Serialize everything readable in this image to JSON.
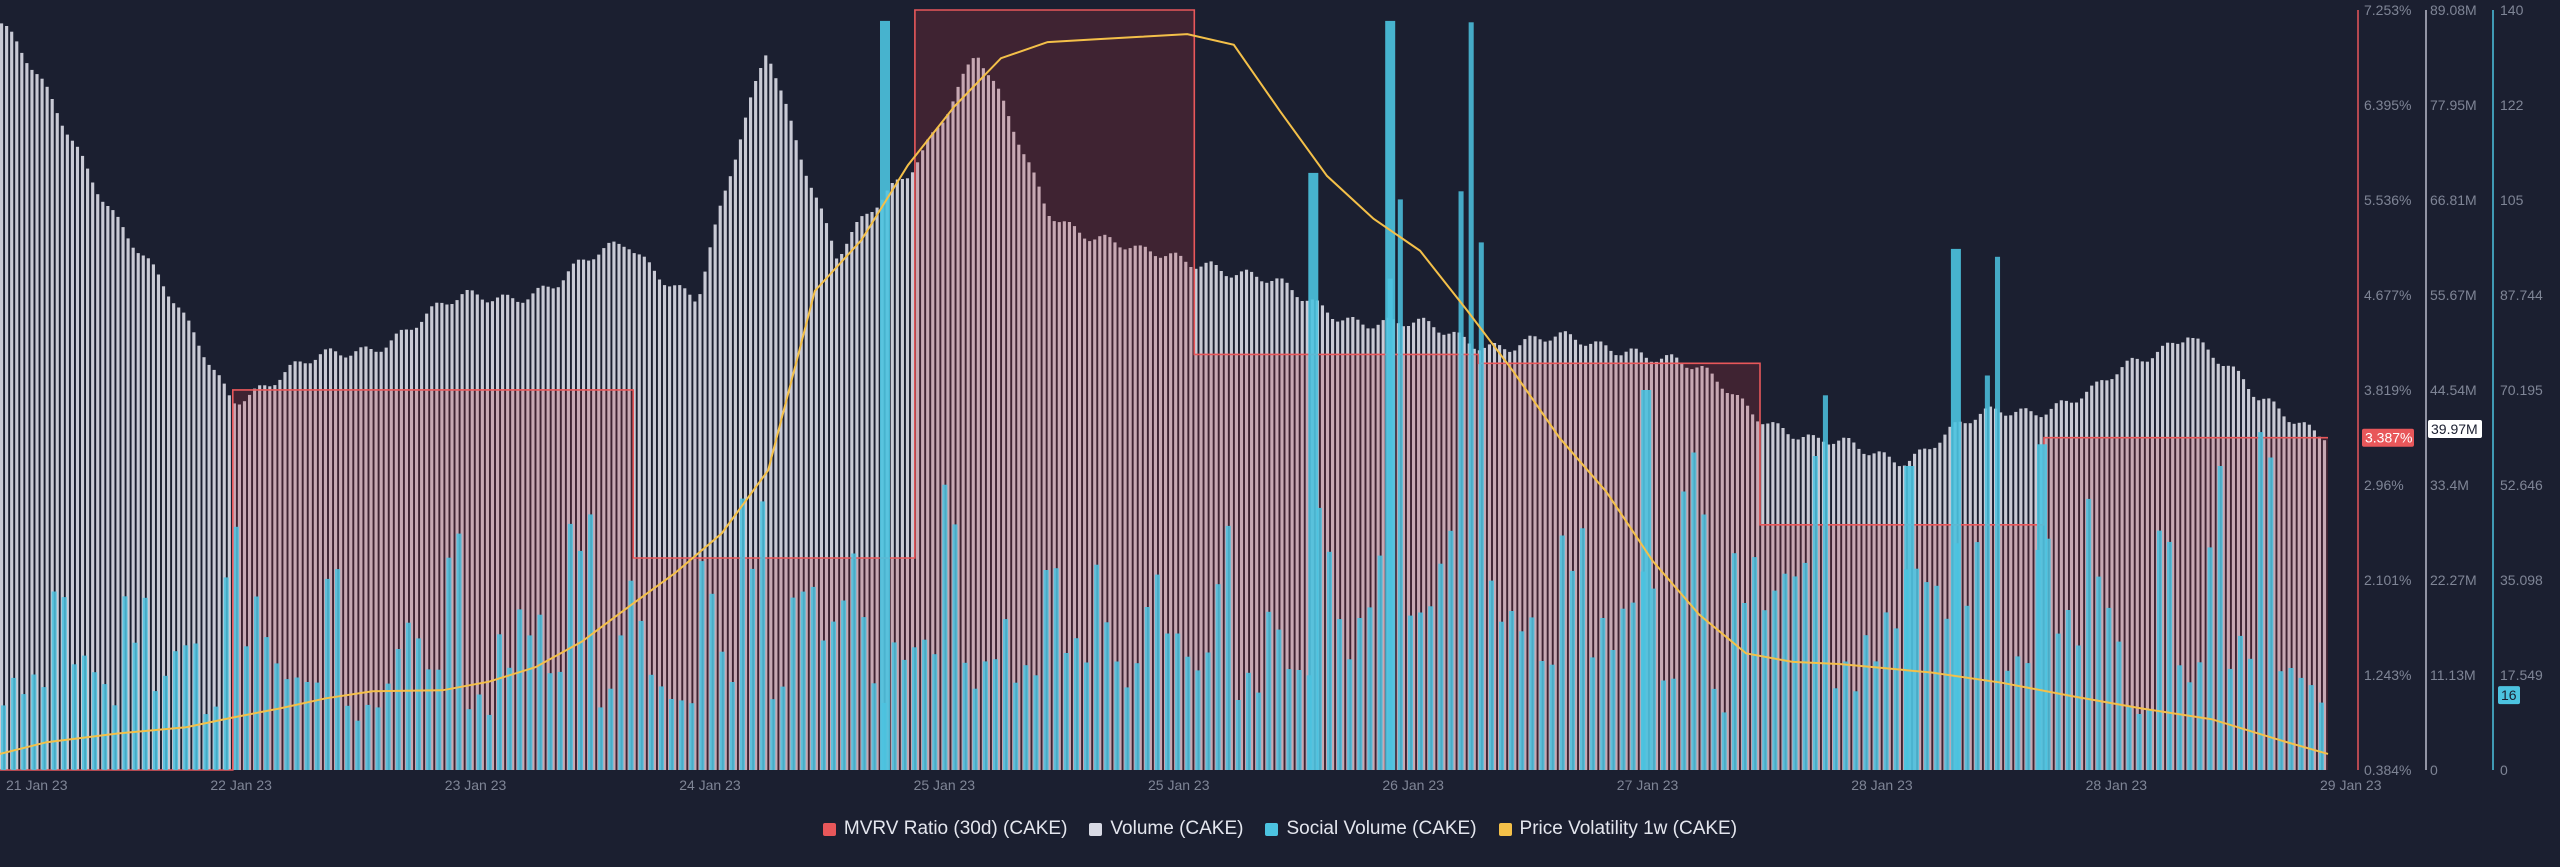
{
  "chart_data": {
    "type": "bar",
    "title": "",
    "x_tick_labels": [
      "21 Jan 23",
      "22 Jan 23",
      "23 Jan 23",
      "24 Jan 23",
      "25 Jan 23",
      "25 Jan 23",
      "26 Jan 23",
      "27 Jan 23",
      "28 Jan 23",
      "28 Jan 23",
      "29 Jan 23"
    ],
    "axes": {
      "mvrv": {
        "ticks": [
          "7.253%",
          "6.395%",
          "5.536%",
          "4.677%",
          "3.819%",
          "2.96%",
          "2.101%",
          "1.243%",
          "0.384%"
        ],
        "range": [
          0.384,
          7.253
        ],
        "unit": "%",
        "color": "#e8575a"
      },
      "volume": {
        "ticks": [
          "89.08M",
          "77.95M",
          "66.81M",
          "55.67M",
          "44.54M",
          "33.4M",
          "22.27M",
          "11.13M",
          "0"
        ],
        "range": [
          0,
          89.08
        ],
        "unit": "M",
        "color": "#b9bccb"
      },
      "social": {
        "ticks": [
          "140",
          "122",
          "105",
          "87.744",
          "70.195",
          "52.646",
          "35.098",
          "17.549",
          "0"
        ],
        "range": [
          0,
          140
        ],
        "color": "#4cc3e0"
      }
    },
    "current_values": {
      "mvrv": "3.387%",
      "volume": "39.97M",
      "social": "16"
    },
    "series": [
      {
        "name": "MVRV Ratio (30d) (CAKE)",
        "color": "#e8575a",
        "kind": "step",
        "x": [
          0,
          0.1,
          0.1,
          0.1,
          0.272,
          0.272,
          0.393,
          0.393,
          0.513,
          0.513,
          0.635,
          0.635,
          0.756,
          0.756,
          0.878,
          0.878,
          0.964,
          0.964,
          1.0
        ],
        "values": [
          0.384,
          0.384,
          3.819,
          3.819,
          3.819,
          2.3,
          2.3,
          7.253,
          7.253,
          4.14,
          4.14,
          4.06,
          4.06,
          2.6,
          2.6,
          3.387,
          3.387,
          3.387,
          3.387
        ]
      },
      {
        "name": "Volume (CAKE)",
        "color": "#d8d9e4",
        "kind": "bar",
        "x": [
          0,
          0.04,
          0.08,
          0.1,
          0.16,
          0.2,
          0.24,
          0.27,
          0.3,
          0.33,
          0.36,
          0.39,
          0.42,
          0.45,
          0.49,
          0.52,
          0.56,
          0.6,
          0.65,
          0.7,
          0.74,
          0.78,
          0.82,
          0.86,
          0.9,
          0.94,
          0.97,
          1.0
        ],
        "values": [
          88,
          70,
          52,
          44,
          50,
          55,
          57,
          62,
          55,
          85,
          60,
          70,
          84,
          66,
          60,
          60,
          55,
          52,
          50,
          50,
          45,
          38,
          37,
          42,
          44,
          52,
          43,
          40
        ]
      },
      {
        "name": "Social Volume (CAKE)",
        "color": "#4cc3e0",
        "kind": "bar",
        "values": [
          17,
          18,
          35,
          22,
          16,
          32,
          18,
          25,
          12,
          45,
          32,
          20,
          18,
          37,
          12,
          16,
          28,
          20,
          45,
          14,
          25,
          30,
          20,
          48,
          15,
          35,
          18,
          14,
          40,
          22,
          50,
          16,
          36,
          28,
          40,
          16,
          24,
          24,
          55,
          20,
          28,
          20,
          40,
          25,
          38,
          20,
          36,
          28,
          22,
          45,
          18,
          30,
          20,
          50,
          28,
          40,
          110,
          32,
          45,
          138,
          35,
          30,
          22,
          45,
          28,
          30,
          38,
          18,
          60,
          15,
          40,
          35,
          40,
          70,
          20,
          25,
          30,
          40,
          35,
          42,
          96,
          22,
          45,
          30,
          50,
          30,
          12,
          48,
          20,
          56,
          25,
          65,
          20,
          16
        ]
      },
      {
        "name": "Price Volatility 1w (CAKE)",
        "color": "#f4c049",
        "kind": "line",
        "x": [
          0,
          0.02,
          0.05,
          0.08,
          0.1,
          0.12,
          0.14,
          0.16,
          0.19,
          0.21,
          0.23,
          0.25,
          0.27,
          0.29,
          0.31,
          0.33,
          0.35,
          0.37,
          0.39,
          0.41,
          0.43,
          0.45,
          0.47,
          0.49,
          0.51,
          0.53,
          0.55,
          0.57,
          0.59,
          0.61,
          0.63,
          0.65,
          0.67,
          0.69,
          0.71,
          0.73,
          0.75,
          0.77,
          0.79,
          0.81,
          0.83,
          0.86,
          0.89,
          0.92,
          0.95,
          0.98,
          1.0
        ],
        "values": [
          0.3,
          0.52,
          0.68,
          0.8,
          0.98,
          1.15,
          1.34,
          1.47,
          1.49,
          1.65,
          1.92,
          2.4,
          3.05,
          3.68,
          4.42,
          5.6,
          8.95,
          9.9,
          11.3,
          12.4,
          13.3,
          13.6,
          13.65,
          13.7,
          13.75,
          13.55,
          12.3,
          11.1,
          10.3,
          9.7,
          8.6,
          7.45,
          6.2,
          5.2,
          3.9,
          2.9,
          2.18,
          2.02,
          1.98,
          1.9,
          1.82,
          1.63,
          1.38,
          1.15,
          0.95,
          0.55,
          0.3
        ]
      }
    ]
  },
  "legend": [
    {
      "label": "MVRV Ratio (30d) (CAKE)",
      "color": "#e8575a"
    },
    {
      "label": "Volume (CAKE)",
      "color": "#d8d9e4"
    },
    {
      "label": "Social Volume (CAKE)",
      "color": "#4cc3e0"
    },
    {
      "label": "Price Volatility 1w (CAKE)",
      "color": "#f4c049"
    }
  ]
}
